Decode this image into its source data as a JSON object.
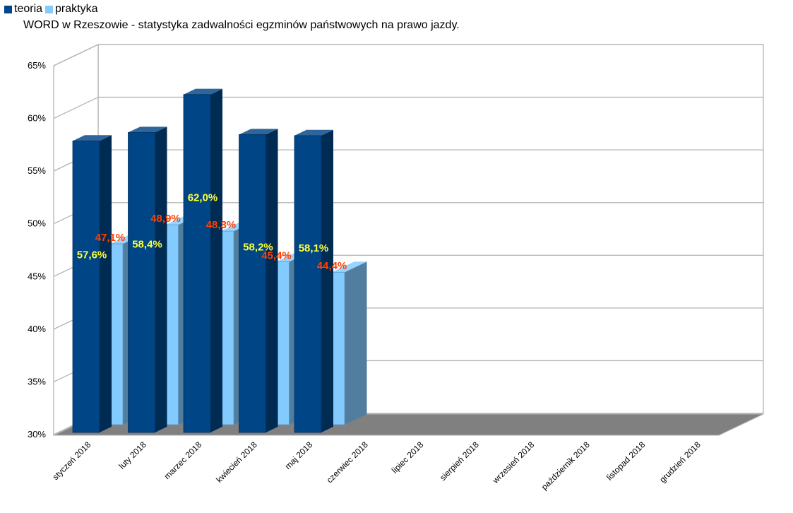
{
  "chart_data": {
    "type": "bar",
    "title": "WORD w Rzeszowie - statystyka zadwalności egzminów państwowych na prawo jazdy.",
    "categories": [
      "styczeń 2018",
      "luty 2018",
      "marzec 2018",
      "kwiecień 2018",
      "maj 2018",
      "czerwiec 2018",
      "lipiec 2018",
      "sierpień 2018",
      "wrzesień 2018",
      "październik 2018",
      "listopad 2018",
      "grudzień 2018"
    ],
    "series": [
      {
        "name": "teoria",
        "color": "#004586",
        "values": [
          57.6,
          58.4,
          62.0,
          58.2,
          58.1,
          null,
          null,
          null,
          null,
          null,
          null,
          null
        ],
        "labels": [
          "57,6%",
          "58,4%",
          "62,0%",
          "58,2%",
          "58,1%",
          "",
          "",
          "",
          "",
          "",
          "",
          ""
        ]
      },
      {
        "name": "praktyka",
        "color": "#83caff",
        "values": [
          47.1,
          48.9,
          48.3,
          45.4,
          44.4,
          null,
          null,
          null,
          null,
          null,
          null,
          null
        ],
        "labels": [
          "47,1%",
          "48,9%",
          "48,3%",
          "45,4%",
          "44,4%",
          "",
          "",
          "",
          "",
          "",
          "",
          ""
        ]
      }
    ],
    "ylim": [
      30,
      65
    ],
    "yticks": [
      30,
      35,
      40,
      45,
      50,
      55,
      60,
      65
    ],
    "ytick_labels": [
      "30%",
      "35%",
      "40%",
      "45%",
      "50%",
      "55%",
      "60%",
      "65%"
    ],
    "grid": true,
    "three_d": true,
    "legend_position": "top-left",
    "label_colors": {
      "teoria": "#ffff38",
      "praktyka": "#ff4000"
    },
    "floor_color": "#808080",
    "wall_color": "#ffffff"
  }
}
